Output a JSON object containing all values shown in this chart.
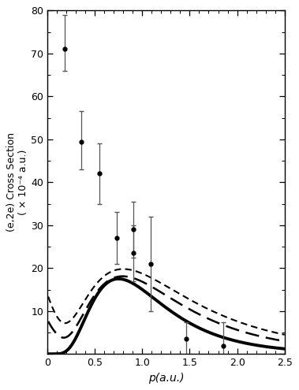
{
  "title": "",
  "xlabel": "p(a.u.)",
  "ylabel": "(e,2e) Cross Section\n( × 10⁻⁴ a.u.)",
  "xlim": [
    0.0,
    2.5
  ],
  "ylim": [
    0,
    80
  ],
  "xticks": [
    0.0,
    0.5,
    1.0,
    1.5,
    2.0,
    2.5
  ],
  "yticks": [
    0,
    10,
    20,
    30,
    40,
    50,
    60,
    70,
    80
  ],
  "exp_x": [
    0.18,
    0.36,
    0.55,
    0.73,
    0.91,
    0.91,
    1.09,
    1.46,
    1.85
  ],
  "exp_y": [
    71.0,
    49.5,
    42.0,
    27.0,
    23.5,
    29.0,
    21.0,
    3.5,
    1.8
  ],
  "exp_yerr_lo": [
    5.0,
    6.5,
    7.0,
    6.0,
    6.5,
    6.5,
    11.0,
    3.8,
    5.5
  ],
  "exp_yerr_hi": [
    8.0,
    7.0,
    7.0,
    6.0,
    6.5,
    6.5,
    11.0,
    3.8,
    5.5
  ],
  "background": "#ffffff"
}
